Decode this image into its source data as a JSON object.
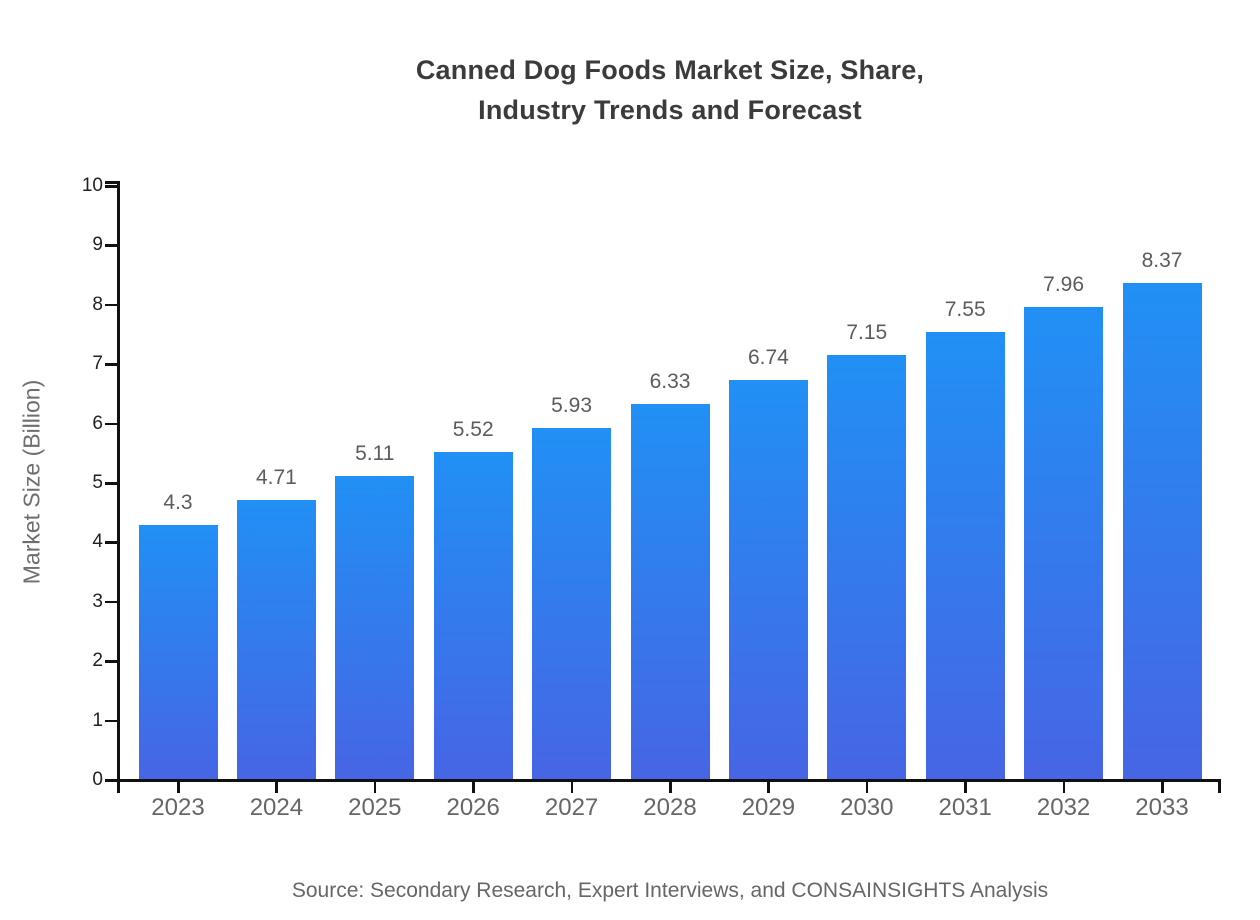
{
  "title": {
    "lines": [
      "Canned Dog Foods Market Size, Share,",
      "Industry Trends and Forecast"
    ]
  },
  "chart_data": {
    "type": "bar",
    "title": "Canned Dog Foods Market Size, Share, Industry Trends and Forecast",
    "categories": [
      "2023",
      "2024",
      "2025",
      "2026",
      "2027",
      "2028",
      "2029",
      "2030",
      "2031",
      "2032",
      "2033"
    ],
    "values": [
      4.3,
      4.71,
      5.11,
      5.52,
      5.93,
      6.33,
      6.74,
      7.15,
      7.55,
      7.96,
      8.37
    ],
    "value_labels": [
      "4.3",
      "4.71",
      "5.11",
      "5.52",
      "5.93",
      "6.33",
      "6.74",
      "7.15",
      "7.55",
      "7.96",
      "8.37"
    ],
    "xlabel": "",
    "ylabel": "Market Size (Billion)",
    "ylim": [
      0,
      10
    ],
    "yticks": [
      0,
      1,
      2,
      3,
      4,
      5,
      6,
      7,
      8,
      9,
      10
    ],
    "grid": false,
    "legend": false,
    "colors": {
      "bar_gradient_top": "#2190F5",
      "bar_gradient_bottom": "#4765E4",
      "axis": "#111111",
      "y_tick_label": "#212121",
      "x_tick_label": "#666666",
      "value_label": "#5c5c5c",
      "title": "#3b3b3b",
      "axis_title": "#6e6e6e"
    }
  },
  "footer": {
    "source": "Source: Secondary Research, Expert Interviews, and CONSAINSIGHTS Analysis"
  }
}
